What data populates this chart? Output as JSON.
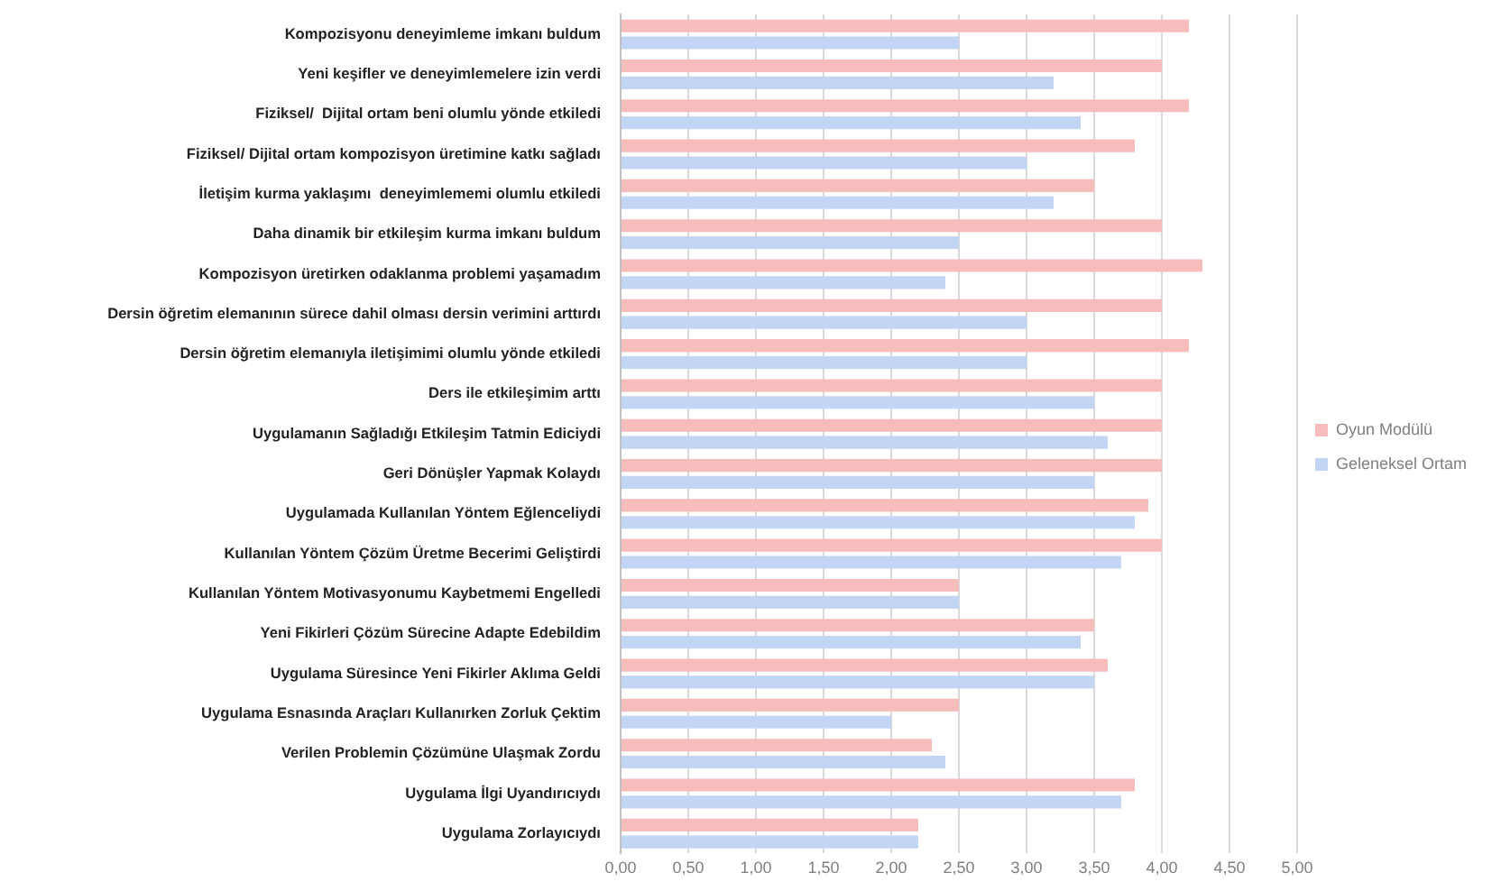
{
  "chart_data": {
    "type": "bar",
    "orientation": "horizontal",
    "categories": [
      "Kompozisyonu deneyimleme imkanı buldum",
      "Yeni keşifler ve deneyimlemelere izin verdi",
      "Fiziksel/  Dijital ortam beni olumlu yönde etkiledi",
      "Fiziksel/ Dijital ortam kompozisyon üretimine katkı sağladı",
      "İletişim kurma yaklaşımı  deneyimlememi olumlu etkiledi",
      "Daha dinamik bir etkileşim kurma imkanı buldum",
      "Kompozisyon üretirken odaklanma problemi yaşamadım",
      "Dersin öğretim elemanının sürece dahil olması dersin verimini arttırdı",
      "Dersin öğretim elemanıyla iletişimimi olumlu yönde etkiledi",
      "Ders ile etkileşimim arttı",
      "Uygulamanın Sağladığı Etkileşim Tatmin Ediciydi",
      "Geri Dönüşler Yapmak Kolaydı",
      "Uygulamada Kullanılan Yöntem Eğlenceliydi",
      "Kullanılan Yöntem Çözüm Üretme Becerimi Geliştirdi",
      "Kullanılan Yöntem Motivasyonumu Kaybetmemi Engelledi",
      "Yeni Fikirleri Çözüm Sürecine Adapte Edebildim",
      "Uygulama Süresince Yeni Fikirler Aklıma Geldi",
      "Uygulama Esnasında Araçları Kullanırken Zorluk Çektim",
      "Verilen Problemin Çözümüne Ulaşmak Zordu",
      "Uygulama İlgi Uyandırıcıydı",
      "Uygulama Zorlayıcıydı"
    ],
    "series": [
      {
        "name": "Oyun Modülü",
        "color": "#f7bcbc",
        "values": [
          4.2,
          4.0,
          4.2,
          3.8,
          3.5,
          4.0,
          4.3,
          4.0,
          4.2,
          4.0,
          4.0,
          4.0,
          3.9,
          4.0,
          2.5,
          3.5,
          3.6,
          2.5,
          2.3,
          3.8,
          2.2
        ]
      },
      {
        "name": "Geleneksel Ortam",
        "color": "#c3d5f5",
        "values": [
          2.5,
          3.2,
          3.4,
          3.0,
          3.2,
          2.5,
          2.4,
          3.0,
          3.0,
          3.5,
          3.6,
          3.5,
          3.8,
          3.7,
          2.5,
          3.4,
          3.5,
          2.0,
          2.4,
          3.7,
          2.2
        ]
      }
    ],
    "xlim": [
      0,
      5
    ],
    "xticks": [
      {
        "value": 0,
        "label": "0,00"
      },
      {
        "value": 0.5,
        "label": "0,50"
      },
      {
        "value": 1,
        "label": "1,00"
      },
      {
        "value": 1.5,
        "label": "1,50"
      },
      {
        "value": 2,
        "label": "2,00"
      },
      {
        "value": 2.5,
        "label": "2,50"
      },
      {
        "value": 3,
        "label": "3,00"
      },
      {
        "value": 3.5,
        "label": "3,50"
      },
      {
        "value": 4,
        "label": "4,00"
      },
      {
        "value": 4.5,
        "label": "4,50"
      },
      {
        "value": 5,
        "label": "5,00"
      }
    ],
    "grid": "x",
    "legend": "right"
  }
}
